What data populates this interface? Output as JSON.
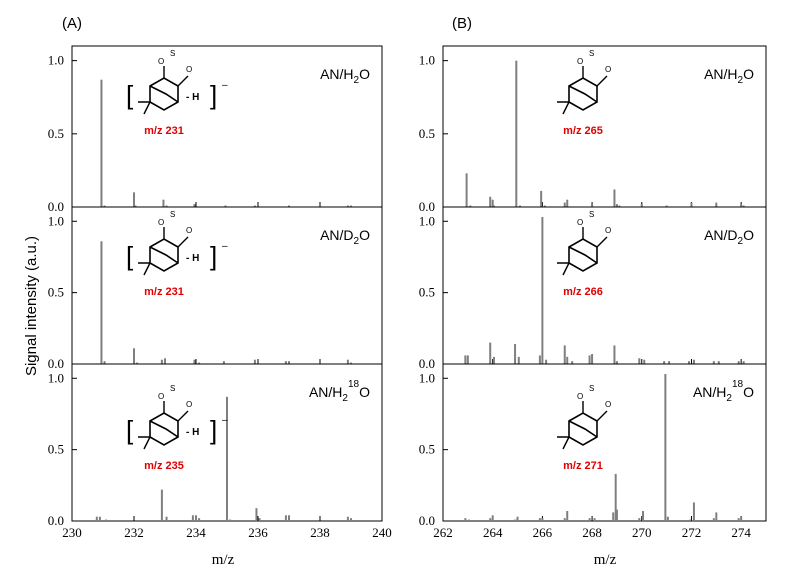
{
  "figure": {
    "panel_labels": [
      "(A)",
      "(B)"
    ],
    "ylabel": "Signal intensity (a.u.)",
    "xlabel": "m/z"
  },
  "colors": {
    "bar": "#7f7f7f",
    "axis": "#000000",
    "highlight": "#e00000"
  },
  "chart_data": [
    {
      "type": "bar",
      "panel": "A",
      "row": 1,
      "condition": {
        "main": "AN/H",
        "sub": "2",
        "sup": "",
        "tail": "O"
      },
      "annotation": "m/z 231",
      "structure_suffix": "- H",
      "xlim": [
        230,
        240
      ],
      "ylim": [
        0,
        1.1
      ],
      "xticks": [
        230,
        232,
        234,
        236,
        238,
        240
      ],
      "yticks": [
        0.0,
        0.5,
        1.0
      ],
      "x": [
        230.95,
        231.05,
        232.0,
        232.05,
        232.95,
        233.05,
        233.95,
        234.95,
        235.9,
        237.0,
        238.9,
        239.0
      ],
      "y": [
        0.87,
        0.01,
        0.1,
        0.01,
        0.05,
        0.01,
        0.02,
        0.01,
        0.01,
        0.01,
        0.01,
        0.01
      ]
    },
    {
      "type": "bar",
      "panel": "A",
      "row": 2,
      "condition": {
        "main": "AN/D",
        "sub": "2",
        "sup": "",
        "tail": "O"
      },
      "annotation": "m/z 231",
      "structure_suffix": "- H",
      "xlim": [
        230,
        240
      ],
      "ylim": [
        0,
        1.1
      ],
      "xticks": [
        230,
        232,
        234,
        236,
        238,
        240
      ],
      "yticks": [
        0.0,
        0.5,
        1.0
      ],
      "x": [
        230.95,
        231.05,
        232.0,
        232.1,
        232.9,
        233.0,
        233.95,
        234.1,
        234.9,
        235.9,
        236.0,
        236.9,
        237.0,
        238.9,
        239.0
      ],
      "y": [
        0.86,
        0.02,
        0.11,
        0.01,
        0.03,
        0.04,
        0.03,
        0.01,
        0.02,
        0.03,
        0.02,
        0.02,
        0.02,
        0.03,
        0.01
      ]
    },
    {
      "type": "bar",
      "panel": "A",
      "row": 3,
      "condition": {
        "main": "AN/H",
        "sub": "2",
        "sup": "18",
        "tail": "O"
      },
      "annotation": "m/z 235",
      "structure_suffix": "- H",
      "xlim": [
        230,
        240
      ],
      "ylim": [
        0,
        1.1
      ],
      "xticks": [
        230,
        232,
        234,
        236,
        238,
        240
      ],
      "yticks": [
        0.0,
        0.5,
        1.0
      ],
      "x": [
        230.8,
        230.9,
        231.1,
        232.9,
        233.05,
        233.9,
        234.0,
        234.1,
        235.0,
        235.1,
        235.95,
        236.05,
        236.9,
        237.0,
        238.9,
        239.0
      ],
      "y": [
        0.03,
        0.03,
        0.01,
        0.22,
        0.03,
        0.04,
        0.04,
        0.02,
        0.87,
        0.01,
        0.09,
        0.02,
        0.04,
        0.04,
        0.03,
        0.02
      ]
    },
    {
      "type": "bar",
      "panel": "B",
      "row": 1,
      "condition": {
        "main": "AN/H",
        "sub": "2",
        "sup": "",
        "tail": "O"
      },
      "annotation": "m/z 265",
      "structure_suffix": "",
      "xlim": [
        262,
        275
      ],
      "ylim": [
        0,
        1.1
      ],
      "xticks": [
        262,
        264,
        266,
        268,
        270,
        272,
        274
      ],
      "yticks": [
        0.0,
        0.5,
        1.0
      ],
      "x": [
        262.95,
        263.1,
        263.9,
        264.0,
        264.05,
        264.95,
        265.1,
        265.95,
        266.1,
        266.9,
        267.0,
        268.0,
        268.9,
        269.0,
        269.1,
        270.0,
        271.0,
        272.0,
        273.0,
        274.0,
        274.1
      ],
      "y": [
        0.23,
        0.01,
        0.07,
        0.05,
        0.01,
        1.0,
        0.01,
        0.11,
        0.01,
        0.03,
        0.05,
        0.02,
        0.12,
        0.02,
        0.01,
        0.02,
        0.01,
        0.03,
        0.03,
        0.02,
        0.01
      ]
    },
    {
      "type": "bar",
      "panel": "B",
      "row": 2,
      "condition": {
        "main": "AN/D",
        "sub": "2",
        "sup": "",
        "tail": "O"
      },
      "annotation": "m/z 266",
      "structure_suffix": "",
      "xlim": [
        262,
        275
      ],
      "ylim": [
        0,
        1.1
      ],
      "xticks": [
        262,
        264,
        266,
        268,
        270,
        272,
        274
      ],
      "yticks": [
        0.0,
        0.5,
        1.0
      ],
      "x": [
        262.9,
        263.0,
        263.9,
        264.05,
        264.9,
        265.05,
        265.9,
        266.0,
        266.15,
        266.9,
        267.0,
        267.2,
        267.9,
        268.0,
        268.9,
        269.0,
        269.9,
        270.1,
        270.9,
        271.1,
        271.9,
        272.1,
        272.9,
        273.1,
        273.9,
        274.1
      ],
      "y": [
        0.06,
        0.06,
        0.15,
        0.05,
        0.14,
        0.05,
        0.06,
        1.03,
        0.03,
        0.13,
        0.05,
        0.02,
        0.06,
        0.07,
        0.13,
        0.02,
        0.04,
        0.03,
        0.02,
        0.02,
        0.02,
        0.03,
        0.02,
        0.02,
        0.02,
        0.02
      ]
    },
    {
      "type": "bar",
      "panel": "B",
      "row": 3,
      "condition": {
        "main": "AN/H",
        "sub": "2",
        "sup": "18",
        "tail": "O"
      },
      "annotation": "m/z 271",
      "structure_suffix": "",
      "xlim": [
        262,
        275
      ],
      "ylim": [
        0,
        1.1
      ],
      "xticks": [
        262,
        264,
        266,
        268,
        270,
        272,
        274
      ],
      "yticks": [
        0.0,
        0.5,
        1.0
      ],
      "x": [
        262.9,
        263.05,
        263.9,
        264.0,
        264.9,
        265.0,
        265.9,
        266.0,
        266.9,
        267.0,
        267.9,
        268.1,
        268.85,
        268.95,
        269.0,
        269.9,
        270.05,
        270.95,
        271.05,
        271.95,
        272.1,
        272.9,
        273.0,
        273.9,
        274.0
      ],
      "y": [
        0.02,
        0.01,
        0.02,
        0.04,
        0.01,
        0.03,
        0.02,
        0.02,
        0.02,
        0.07,
        0.02,
        0.02,
        0.06,
        0.33,
        0.08,
        0.02,
        0.07,
        1.03,
        0.03,
        0.01,
        0.13,
        0.02,
        0.06,
        0.02,
        0.03
      ]
    }
  ]
}
